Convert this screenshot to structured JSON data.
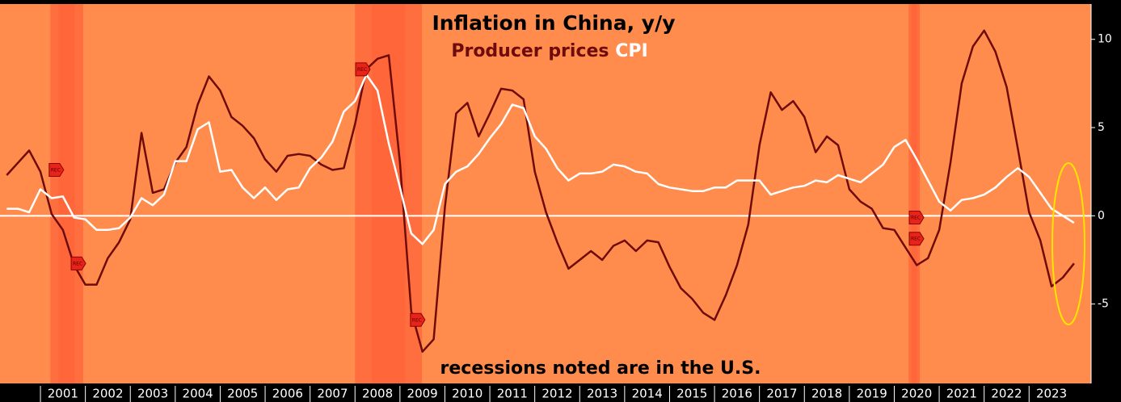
{
  "chart_data": {
    "type": "line",
    "title": "Inflation in China, y/y",
    "annotation": "recessions noted are in the U.S.",
    "x": [
      2000.25,
      2000.5,
      2000.75,
      2001,
      2001.25,
      2001.5,
      2001.75,
      2002,
      2002.25,
      2002.5,
      2002.75,
      2003,
      2003.25,
      2003.5,
      2003.75,
      2004,
      2004.25,
      2004.5,
      2004.75,
      2005,
      2005.25,
      2005.5,
      2005.75,
      2006,
      2006.25,
      2006.5,
      2006.75,
      2007,
      2007.25,
      2007.5,
      2007.75,
      2008,
      2008.25,
      2008.5,
      2008.75,
      2009,
      2009.25,
      2009.5,
      2009.75,
      2010,
      2010.25,
      2010.5,
      2010.75,
      2011,
      2011.25,
      2011.5,
      2011.75,
      2012,
      2012.25,
      2012.5,
      2012.75,
      2013,
      2013.25,
      2013.5,
      2013.75,
      2014,
      2014.25,
      2014.5,
      2014.75,
      2015,
      2015.25,
      2015.5,
      2015.75,
      2016,
      2016.25,
      2016.5,
      2016.75,
      2017,
      2017.25,
      2017.5,
      2017.75,
      2018,
      2018.25,
      2018.5,
      2018.75,
      2019,
      2019.25,
      2019.5,
      2019.75,
      2020,
      2020.25,
      2020.5,
      2020.75,
      2021,
      2021.25,
      2021.5,
      2021.75,
      2022,
      2022.25,
      2022.5,
      2022.75,
      2023,
      2023.25,
      2023.5,
      2023.75,
      2024
    ],
    "series": [
      {
        "name": "Producer prices",
        "color": "#6e0b0b",
        "values": [
          2.3,
          3.0,
          3.7,
          2.5,
          0.1,
          -0.8,
          -2.8,
          -3.9,
          -3.9,
          -2.4,
          -1.5,
          -0.2,
          4.7,
          1.3,
          1.5,
          3.0,
          3.9,
          6.3,
          7.9,
          7.1,
          5.6,
          5.1,
          4.4,
          3.2,
          2.5,
          3.4,
          3.5,
          3.4,
          2.9,
          2.6,
          2.7,
          5.2,
          8.3,
          8.9,
          9.1,
          3.0,
          -5.4,
          -7.7,
          -7.0,
          0.5,
          5.8,
          6.4,
          4.5,
          5.8,
          7.2,
          7.1,
          6.6,
          2.5,
          0.2,
          -1.5,
          -3.0,
          -2.5,
          -2.0,
          -2.5,
          -1.7,
          -1.4,
          -2.0,
          -1.4,
          -1.5,
          -2.9,
          -4.1,
          -4.7,
          -5.5,
          -5.9,
          -4.5,
          -2.8,
          -0.5,
          4.0,
          7.0,
          6.0,
          6.5,
          5.6,
          3.6,
          4.5,
          4.0,
          1.5,
          0.8,
          0.4,
          -0.7,
          -0.8,
          -1.8,
          -2.8,
          -2.4,
          -0.8,
          3.0,
          7.5,
          9.6,
          10.5,
          9.3,
          7.3,
          3.8,
          0.2,
          -1.4,
          -4.0,
          -3.5,
          -2.7
        ]
      },
      {
        "name": "CPI",
        "color": "#ffffff",
        "values": [
          0.4,
          0.4,
          0.2,
          1.5,
          1.0,
          1.1,
          -0.1,
          -0.2,
          -0.8,
          -0.8,
          -0.7,
          -0.1,
          1.0,
          0.6,
          1.2,
          3.1,
          3.1,
          4.9,
          5.3,
          2.5,
          2.6,
          1.6,
          1.0,
          1.6,
          0.9,
          1.5,
          1.6,
          2.7,
          3.3,
          4.2,
          5.9,
          6.5,
          8.0,
          7.1,
          4.1,
          1.6,
          -1.0,
          -1.6,
          -0.8,
          1.8,
          2.5,
          2.8,
          3.5,
          4.4,
          5.2,
          6.3,
          6.1,
          4.5,
          3.8,
          2.7,
          2.0,
          2.4,
          2.4,
          2.5,
          2.9,
          2.8,
          2.5,
          2.4,
          1.8,
          1.6,
          1.5,
          1.4,
          1.4,
          1.6,
          1.6,
          2.0,
          2.0,
          2.0,
          1.2,
          1.4,
          1.6,
          1.7,
          2.0,
          1.9,
          2.3,
          2.1,
          1.9,
          2.4,
          2.9,
          3.9,
          4.3,
          3.2,
          2.0,
          0.8,
          0.3,
          0.9,
          1.0,
          1.2,
          1.6,
          2.2,
          2.7,
          2.2,
          1.3,
          0.4,
          0.0,
          -0.4
        ]
      }
    ],
    "recessions": [
      [
        2001.22,
        2001.95
      ],
      [
        2008.0,
        2009.49
      ],
      [
        2020.32,
        2020.57
      ]
    ],
    "flag_label": "REC",
    "flags": [
      {
        "x": 2001.32,
        "y": 2.6
      },
      {
        "x": 2001.81,
        "y": -2.7
      },
      {
        "x": 2008.14,
        "y": 8.3
      },
      {
        "x": 2009.36,
        "y": -5.9
      },
      {
        "x": 2020.46,
        "y": -0.1
      },
      {
        "x": 2020.46,
        "y": -1.3
      }
    ],
    "xlim": [
      2000.1,
      2024.38
    ],
    "xticks": [
      2001,
      2002,
      2003,
      2004,
      2005,
      2006,
      2007,
      2008,
      2009,
      2010,
      2011,
      2012,
      2013,
      2014,
      2015,
      2016,
      2017,
      2018,
      2019,
      2020,
      2021,
      2022,
      2023
    ],
    "ylim": [
      -9.5,
      12
    ],
    "yticks": [
      10,
      5,
      0,
      -5
    ],
    "zero_line": true
  }
}
